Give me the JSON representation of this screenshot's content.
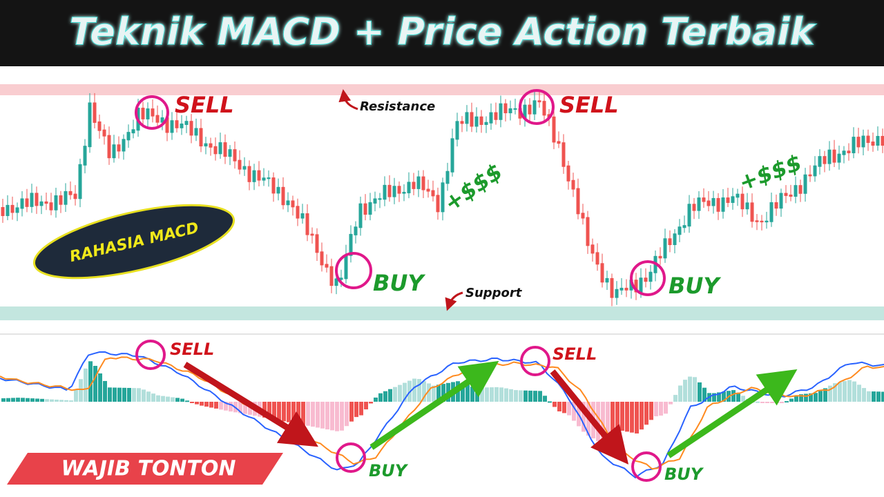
{
  "header": {
    "title": "Teknik MACD + Price Action Terbaik"
  },
  "price_panel": {
    "labels": {
      "sell_1": "SELL",
      "sell_2": "SELL",
      "buy_1": "BUY",
      "buy_2": "BUY",
      "resistance": "Resistance",
      "support": "Support",
      "profit_1": "+$$$",
      "profit_2": "+$$$"
    },
    "badge": "RAHASIA MACD"
  },
  "macd_panel": {
    "labels": {
      "sell_1": "SELL",
      "sell_2": "SELL",
      "buy_1": "BUY",
      "buy_2": "BUY"
    }
  },
  "banner": "WAJIB TONTON"
}
